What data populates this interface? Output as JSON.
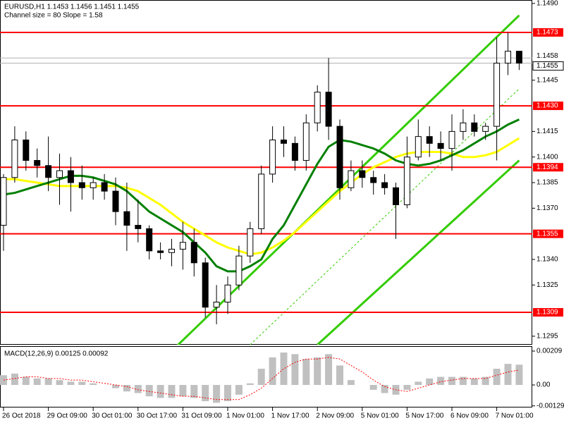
{
  "chart_data": [
    {
      "type": "candlestick",
      "title": "EURUSD,H1  1.1453 1.1456 1.1451 1.1455",
      "subtitle": "Channel size = 80 Slope = 1.58",
      "categories": [
        "26 Oct 2018",
        null,
        null,
        null,
        "29 Oct 09:00",
        null,
        null,
        null,
        "30 Oct 01:00",
        null,
        null,
        null,
        "30 Oct 17:00",
        null,
        null,
        null,
        "31 Oct 09:00",
        null,
        null,
        null,
        "1 Nov 01:00",
        null,
        null,
        null,
        "1 Nov 17:00",
        null,
        null,
        null,
        "2 Nov 09:00",
        null,
        null,
        null,
        "5 Nov 01:00",
        null,
        null,
        null,
        "5 Nov 17:00",
        null,
        null,
        null,
        "6 Nov 09:00",
        null,
        null,
        null,
        "7 Nov 01:00",
        null,
        null
      ],
      "open": [
        1.136,
        1.1388,
        1.141,
        1.1398,
        1.1395,
        1.1388,
        1.1392,
        1.1385,
        1.1382,
        1.1385,
        1.138,
        1.1368,
        1.136,
        1.1358,
        1.1345,
        1.1344,
        1.1346,
        1.135,
        1.1338,
        1.1312,
        1.1315,
        1.1325,
        1.1342,
        1.1358,
        1.139,
        1.141,
        1.1408,
        1.1398,
        1.142,
        1.1438,
        1.1418,
        1.1382,
        1.1392,
        1.1388,
        1.1385,
        1.1382,
        1.1372,
        1.14,
        1.1412,
        1.1408,
        1.1405,
        1.1415,
        1.142,
        1.1415,
        1.1418,
        1.1455,
        1.1462
      ],
      "high": [
        1.139,
        1.1418,
        1.1415,
        1.1405,
        1.1412,
        1.1402,
        1.14,
        1.1395,
        1.1388,
        1.139,
        1.1388,
        1.1385,
        1.1375,
        1.136,
        1.135,
        1.1352,
        1.1362,
        1.1358,
        1.1341,
        1.1325,
        1.133,
        1.1348,
        1.1362,
        1.1395,
        1.1418,
        1.1418,
        1.1412,
        1.1425,
        1.1442,
        1.1458,
        1.1422,
        1.1398,
        1.1398,
        1.1392,
        1.139,
        1.1385,
        1.1412,
        1.1422,
        1.1418,
        1.1415,
        1.1425,
        1.1428,
        1.1425,
        1.142,
        1.147,
        1.1473,
        1.1462
      ],
      "low": [
        1.1345,
        1.1385,
        1.1392,
        1.1388,
        1.138,
        1.1372,
        1.1368,
        1.1375,
        1.1375,
        1.1375,
        1.136,
        1.1345,
        1.135,
        1.134,
        1.134,
        1.1336,
        1.1334,
        1.133,
        1.1306,
        1.1302,
        1.1308,
        1.1322,
        1.1338,
        1.1355,
        1.1385,
        1.14,
        1.1392,
        1.1392,
        1.1415,
        1.141,
        1.1375,
        1.138,
        1.1382,
        1.1378,
        1.1378,
        1.1352,
        1.137,
        1.1398,
        1.14,
        1.1398,
        1.1392,
        1.141,
        1.1412,
        1.141,
        1.1398,
        1.1448,
        1.1451
      ],
      "close": [
        1.1388,
        1.141,
        1.1398,
        1.1395,
        1.1388,
        1.1392,
        1.1385,
        1.1382,
        1.1385,
        1.138,
        1.1368,
        1.136,
        1.1358,
        1.1345,
        1.1344,
        1.1346,
        1.135,
        1.1338,
        1.1312,
        1.1315,
        1.1325,
        1.1342,
        1.1358,
        1.139,
        1.141,
        1.1408,
        1.1398,
        1.142,
        1.1438,
        1.1418,
        1.1382,
        1.1392,
        1.1388,
        1.1385,
        1.1382,
        1.1372,
        1.14,
        1.1412,
        1.1408,
        1.1405,
        1.1415,
        1.142,
        1.1415,
        1.1418,
        1.1455,
        1.1462,
        1.1455
      ],
      "lines": [
        {
          "color": "#ffff00",
          "values": [
            1.1387,
            1.1387,
            1.1386,
            1.1385,
            1.1384,
            1.1383,
            1.1383,
            1.1383,
            1.1383,
            1.1383,
            1.1383,
            1.1382,
            1.138,
            1.1376,
            1.1372,
            1.1367,
            1.1362,
            1.1358,
            1.1354,
            1.135,
            1.1347,
            1.1345,
            1.1343,
            1.1344,
            1.1347,
            1.1351,
            1.1356,
            1.1362,
            1.1368,
            1.1374,
            1.138,
            1.1385,
            1.139,
            1.1394,
            1.1397,
            1.14,
            1.1402,
            1.1403,
            1.1403,
            1.1403,
            1.1402,
            1.14,
            1.14,
            1.1401,
            1.1403,
            1.1407,
            1.1411
          ]
        },
        {
          "color": "#008000",
          "values": [
            1.1378,
            1.1379,
            1.1381,
            1.1383,
            1.1385,
            1.1387,
            1.1389,
            1.1389,
            1.1388,
            1.1386,
            1.1384,
            1.138,
            1.1374,
            1.1368,
            1.1364,
            1.136,
            1.1356,
            1.135,
            1.1344,
            1.1336,
            1.1333,
            1.1333,
            1.1336,
            1.134,
            1.1352,
            1.136,
            1.1372,
            1.1384,
            1.1396,
            1.1406,
            1.141,
            1.1409,
            1.1407,
            1.1405,
            1.1402,
            1.1398,
            1.1396,
            1.1395,
            1.1396,
            1.1398,
            1.1401,
            1.1404,
            1.1408,
            1.1412,
            1.1415,
            1.1419,
            1.1422
          ]
        }
      ],
      "channel": [
        {
          "color": "#33cc00",
          "x": [
            14,
            46
          ],
          "values": [
            1.128,
            1.1483
          ]
        },
        {
          "color": "#33cc00",
          "x": [
            28,
            46
          ],
          "values": [
            1.129,
            1.1398
          ]
        },
        {
          "color": "#33cc00",
          "style": "dashed",
          "x": [
            22,
            46
          ],
          "values": [
            1.129,
            1.144
          ]
        }
      ],
      "levels": [
        {
          "value": 1.1473,
          "label": "1.1473"
        },
        {
          "value": 1.143,
          "label": "1.1430"
        },
        {
          "value": 1.1394,
          "label": "1.1394"
        },
        {
          "value": 1.1355,
          "label": "1.1355"
        },
        {
          "value": 1.1309,
          "label": "1.1309"
        }
      ],
      "level_color": "#ff0000",
      "price_markers": [
        {
          "value": 1.1458,
          "label": "1.1458"
        },
        {
          "value": 1.1455,
          "label": "1.1455"
        }
      ],
      "ylim": [
        1.129,
        1.1492
      ],
      "yticks": [
        {
          "value": 1.149,
          "label": "1.1490"
        },
        {
          "value": 1.1445,
          "label": "1.1445"
        },
        {
          "value": 1.1415,
          "label": "1.1415"
        },
        {
          "value": 1.14,
          "label": "1.1400"
        },
        {
          "value": 1.1385,
          "label": "1.1385"
        },
        {
          "value": 1.137,
          "label": "1.1370"
        },
        {
          "value": 1.134,
          "label": "1.1340"
        },
        {
          "value": 1.1325,
          "label": "1.1325"
        },
        {
          "value": 1.1295,
          "label": "1.1295"
        }
      ]
    },
    {
      "type": "macd",
      "title": "MACD(12,26,9) 0.00125 0.00092",
      "histogram": {
        "color": "#c0c0c0",
        "values": [
          0.0006,
          0.0007,
          0.0005,
          0.0004,
          0.0004,
          0.0003,
          0.0002,
          0.0002,
          0.0001,
          0.0,
          -0.0002,
          -0.0004,
          -0.0005,
          -0.0007,
          -0.0008,
          -0.0008,
          -0.0007,
          -0.0008,
          -0.001,
          -0.0011,
          -0.001,
          -0.0006,
          0.0001,
          0.001,
          0.0017,
          0.002,
          0.0019,
          0.0016,
          0.0017,
          0.0019,
          0.0012,
          0.0003,
          0.0,
          -0.0003,
          -0.0005,
          -0.0006,
          -0.0003,
          0.0002,
          0.0004,
          0.0005,
          0.0005,
          0.0005,
          0.0004,
          0.0005,
          0.001,
          0.0013,
          0.00125
        ]
      },
      "signal": {
        "color": "#ff0000",
        "values": [
          0.0003,
          0.0004,
          0.0005,
          0.0005,
          0.0004,
          0.0004,
          0.0003,
          0.0003,
          0.0002,
          0.0001,
          0.0,
          -0.0001,
          -0.0003,
          -0.0004,
          -0.0005,
          -0.0006,
          -0.0007,
          -0.0007,
          -0.0008,
          -0.0009,
          -0.0009,
          -0.0009,
          -0.0006,
          -0.0002,
          0.0004,
          0.001,
          0.0014,
          0.0016,
          0.0016,
          0.0017,
          0.0016,
          0.0012,
          0.0008,
          0.0003,
          -0.0001,
          -0.0003,
          -0.0004,
          -0.0002,
          0.0,
          0.0002,
          0.0003,
          0.0004,
          0.0004,
          0.0004,
          0.0006,
          0.0008,
          0.00092
        ]
      },
      "ylim": [
        -0.00139,
        0.00235
      ],
      "yticks": [
        0.00209,
        {
          "value": 0,
          "label": "0.00"
        },
        -0.00129
      ]
    }
  ]
}
